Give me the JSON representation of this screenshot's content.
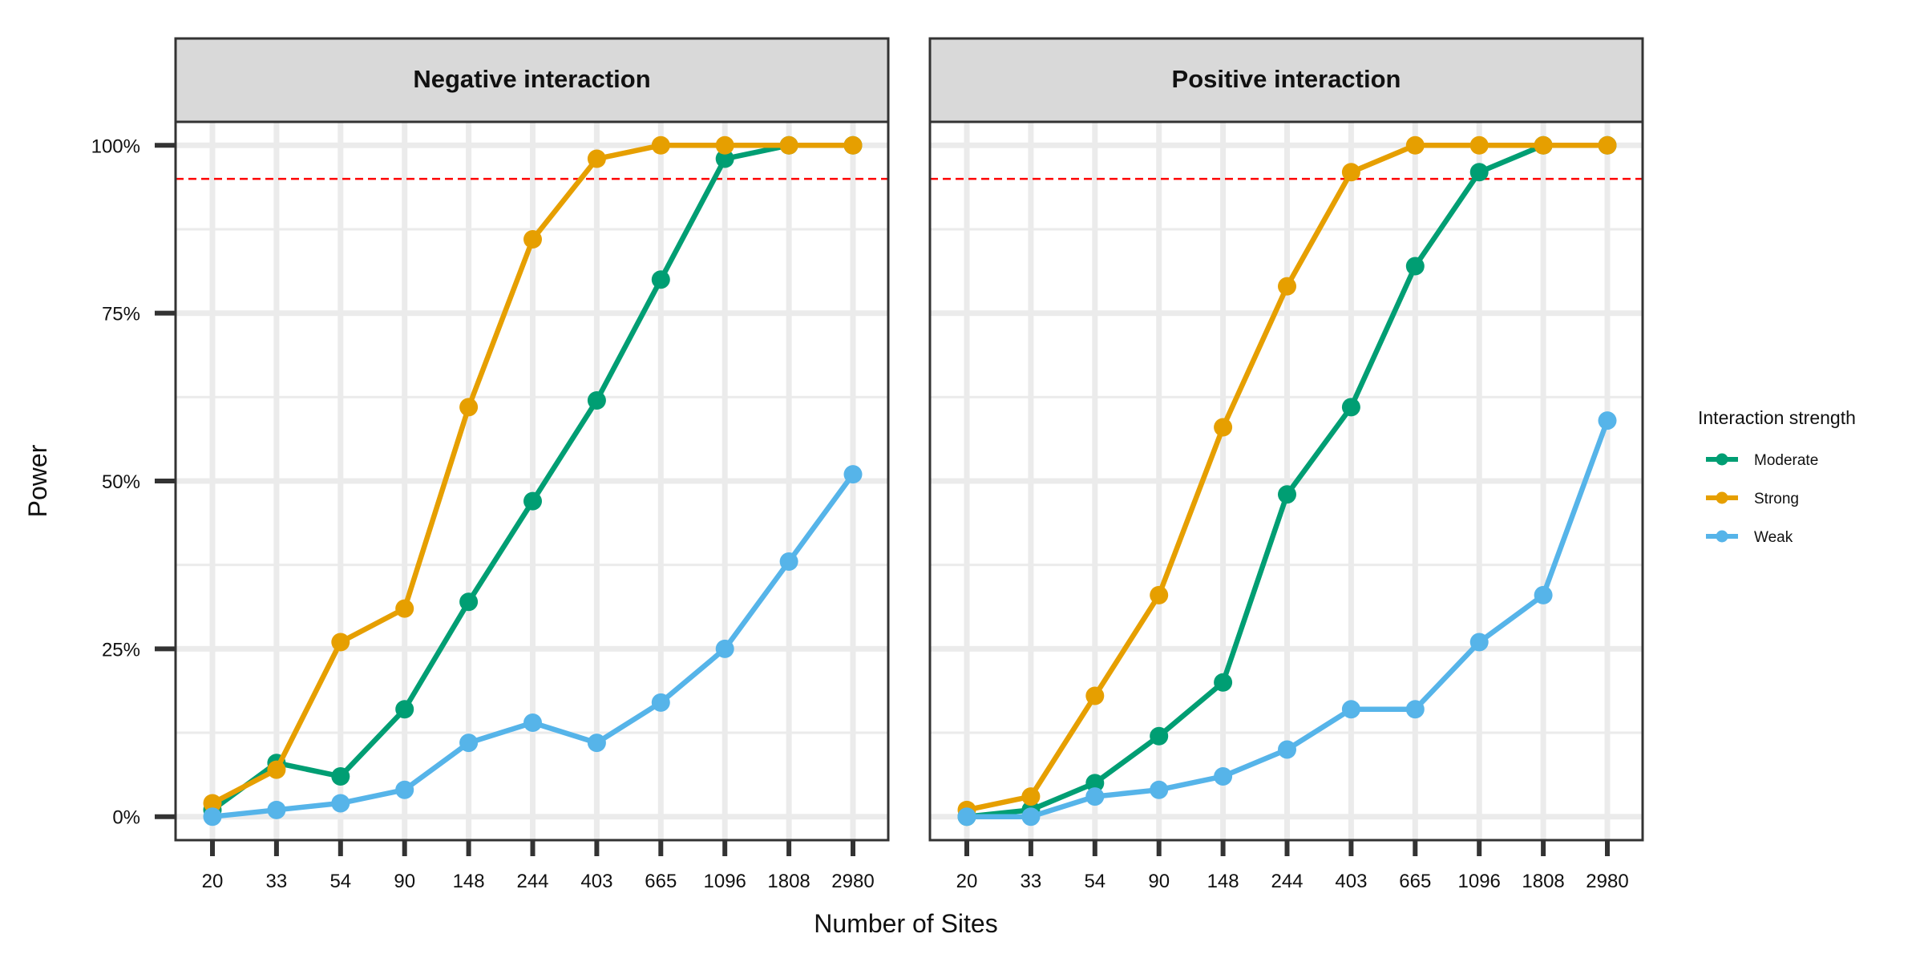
{
  "chart_data": {
    "type": "line",
    "x": [
      "20",
      "33",
      "54",
      "90",
      "148",
      "244",
      "403",
      "665",
      "1096",
      "1808",
      "2980"
    ],
    "xlabel": "Number of Sites",
    "ylabel": "Power",
    "ylim": [
      -0.035,
      1.035
    ],
    "y_ticks": [
      0,
      0.25,
      0.5,
      0.75,
      1.0
    ],
    "y_tick_labels": [
      "0%",
      "25%",
      "50%",
      "75%",
      "100%"
    ],
    "reference_line": {
      "y": 0.95,
      "style": "dashed",
      "color": "#ff0000"
    },
    "grid": true,
    "legend": {
      "title": "Interaction strength",
      "position": "right",
      "entries": [
        "Moderate",
        "Strong",
        "Weak"
      ]
    },
    "colors": {
      "Moderate": "#009e73",
      "Strong": "#e69f00",
      "Weak": "#56b4e9"
    },
    "panels": [
      {
        "title": "Negative interaction",
        "series": [
          {
            "name": "Moderate",
            "values": [
              0.01,
              0.08,
              0.06,
              0.16,
              0.32,
              0.47,
              0.62,
              0.8,
              0.98,
              1.0,
              1.0
            ]
          },
          {
            "name": "Strong",
            "values": [
              0.02,
              0.07,
              0.26,
              0.31,
              0.61,
              0.86,
              0.98,
              1.0,
              1.0,
              1.0,
              1.0
            ]
          },
          {
            "name": "Weak",
            "values": [
              0.0,
              0.01,
              0.02,
              0.04,
              0.11,
              0.14,
              0.11,
              0.17,
              0.25,
              0.38,
              0.51
            ]
          }
        ]
      },
      {
        "title": "Positive interaction",
        "series": [
          {
            "name": "Moderate",
            "values": [
              0.0,
              0.01,
              0.05,
              0.12,
              0.2,
              0.48,
              0.61,
              0.82,
              0.96,
              1.0,
              1.0
            ]
          },
          {
            "name": "Strong",
            "values": [
              0.01,
              0.03,
              0.18,
              0.33,
              0.58,
              0.79,
              0.96,
              1.0,
              1.0,
              1.0,
              1.0
            ]
          },
          {
            "name": "Weak",
            "values": [
              0.0,
              0.0,
              0.03,
              0.04,
              0.06,
              0.1,
              0.16,
              0.16,
              0.26,
              0.33,
              0.59
            ]
          }
        ]
      }
    ]
  }
}
